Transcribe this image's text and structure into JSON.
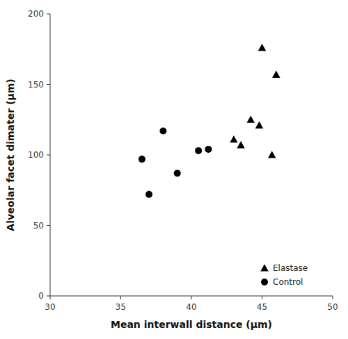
{
  "chart_data": {
    "type": "scatter",
    "x_label": "Mean interwall distance (μm)",
    "y_label": "Alveolar facet dimater (μm)",
    "series": [
      {
        "name": "Elastase",
        "color": "black",
        "marker": "triangle",
        "x": [
          43.0,
          43.5,
          44.2,
          44.8,
          45.0,
          45.7,
          46.0
        ],
        "values": [
          111,
          107,
          125,
          121,
          176,
          100,
          157
        ]
      },
      {
        "name": "Control",
        "color": "black",
        "marker": "circle",
        "x": [
          36.5,
          37.0,
          38.0,
          39.0,
          40.5,
          41.2
        ],
        "values": [
          97,
          72,
          117,
          87,
          103,
          104
        ]
      }
    ],
    "xlim": [
      30,
      50
    ],
    "ylim": [
      0,
      200
    ],
    "xticks": [
      30,
      35,
      40,
      45,
      50
    ],
    "yticks": [
      0,
      50,
      100,
      150,
      200
    ],
    "grid": false,
    "legend": "lower right"
  }
}
